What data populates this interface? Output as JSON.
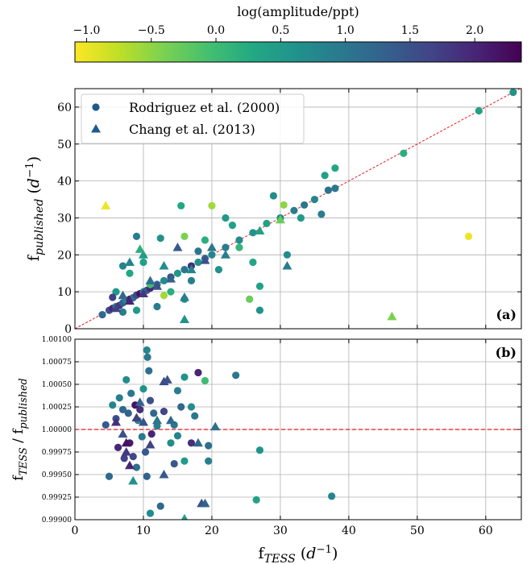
{
  "chart_data": [
    {
      "type": "scatter",
      "colorbar": {
        "label": "log(amplitude/ppt)",
        "colormap": "viridis_r",
        "lim": [
          -1.09,
          2.36
        ],
        "ticks": [
          {
            "value": -1,
            "label": "−1.0"
          },
          {
            "value": -0.5,
            "label": "−0.5"
          },
          {
            "value": 0,
            "label": "0.0"
          },
          0.5,
          {
            "value": 1,
            "label": "1.0"
          },
          1.5,
          {
            "value": 2,
            "label": "2.0"
          }
        ]
      },
      "ylabel": [
        "f",
        "published",
        " (",
        "d",
        "−1",
        ")"
      ],
      "annotation": "(a)",
      "xlim": [
        0,
        65.2
      ],
      "ylim": [
        0,
        65
      ],
      "xticks": [
        0,
        10,
        20,
        30,
        40,
        50,
        60
      ],
      "yticks": [
        0,
        10,
        20,
        30,
        40,
        50,
        60
      ],
      "grid": true,
      "diagonal": true,
      "legend": "upper left",
      "series": [
        {
          "name": "Rodriguez et al. (2000)",
          "marker": "circle",
          "color": "#1f5a8c",
          "x": [
            4,
            5,
            5.5,
            6,
            6.5,
            7,
            7.5,
            8,
            8.5,
            9,
            9.5,
            10,
            10.5,
            11,
            12,
            13,
            14,
            15,
            16,
            17,
            18,
            19,
            20,
            22,
            24,
            26,
            28,
            30,
            32,
            33.5,
            35,
            37,
            38,
            48,
            59,
            64,
            15.5,
            20,
            30.5,
            9,
            12.5,
            16,
            57.5,
            22,
            36,
            31,
            27,
            27,
            25.5,
            24,
            19,
            7,
            6,
            8,
            10,
            11,
            14,
            12,
            9,
            13,
            16,
            17,
            36.5,
            38,
            33,
            29,
            26,
            21,
            23,
            18,
            5.5,
            7
          ],
          "values": [
            3.8,
            5,
            5.5,
            6,
            6.3,
            7,
            7.6,
            8,
            8.4,
            9.1,
            9.5,
            10,
            10.4,
            11,
            12,
            13,
            14,
            15,
            16,
            17,
            18,
            19,
            20,
            22,
            24,
            26,
            28.5,
            30,
            32,
            33.5,
            35,
            37.5,
            38,
            47.5,
            59,
            64,
            33.3,
            33.3,
            33.5,
            25,
            24.5,
            25,
            25,
            30,
            31,
            20,
            11.5,
            5,
            8,
            22,
            24,
            17,
            10,
            15,
            18,
            12,
            10,
            6,
            5,
            9,
            8,
            13,
            41.5,
            43.5,
            30,
            36,
            18,
            16,
            28,
            21,
            8.5,
            4.5
          ],
          "c": [
            1.2,
            1.5,
            2.0,
            1.0,
            1.8,
            1.3,
            0.8,
            2.1,
            1.1,
            1.6,
            2.2,
            0.9,
            1.4,
            2.0,
            1.2,
            0.7,
            1.5,
            0.5,
            1.0,
            1.9,
            0.6,
            1.3,
            0.8,
            0.9,
            0.7,
            0.6,
            0.4,
            0.7,
            0.9,
            1.0,
            0.8,
            1.1,
            1.0,
            0.2,
            0.4,
            0.6,
            0.3,
            -0.6,
            -0.5,
            0.9,
            0.6,
            -0.4,
            -1.0,
            0.5,
            0.9,
            0.7,
            0.4,
            0.6,
            -0.3,
            0.1,
            0.2,
            0.8,
            0.5,
            0.3,
            0.4,
            0.0,
            0.2,
            0.9,
            0.5,
            -0.6,
            0.6,
            0.9,
            0.4,
            0.3,
            0.5,
            0.7,
            0.3,
            0.6,
            0.4,
            1.0,
            1.7,
            0.9
          ]
        },
        {
          "name": "Chang et al. (2013)",
          "marker": "triangle",
          "color": "#1f5a8c",
          "x": [
            4.5,
            46.3,
            16,
            16,
            8,
            10,
            9.5,
            15,
            27,
            31,
            30,
            20,
            6,
            8,
            10,
            12,
            14,
            17,
            19,
            11,
            13,
            7,
            22
          ],
          "values": [
            33.3,
            3.3,
            2.5,
            8.5,
            18,
            20,
            21.5,
            22,
            26.5,
            17,
            29.5,
            22,
            5.5,
            7.5,
            9.5,
            11.5,
            13.5,
            16,
            18.5,
            13,
            17,
            9,
            20
          ],
          "c": [
            -1.0,
            -0.4,
            0.6,
            0.9,
            0.8,
            0.5,
            0.2,
            1.4,
            0.4,
            0.9,
            -0.3,
            1.0,
            1.7,
            2.0,
            1.8,
            1.5,
            1.3,
            0.8,
            1.5,
            1.1,
            0.7,
            1.2,
            0.9
          ]
        }
      ]
    },
    {
      "type": "scatter",
      "ylabel": [
        "f",
        "TESS",
        " / f",
        "published"
      ],
      "xlabel": [
        "f",
        "TESS",
        " (",
        "d",
        "−1",
        ")"
      ],
      "annotation": "(b)",
      "xlim": [
        0,
        65.2
      ],
      "ylim": [
        0.999,
        1.001
      ],
      "xticks": [
        0,
        10,
        20,
        30,
        40,
        50,
        60
      ],
      "yticks": [
        {
          "value": 0.999,
          "label": "0.99900"
        },
        {
          "value": 0.99925,
          "label": "0.99925"
        },
        {
          "value": 0.9995,
          "label": "0.99950"
        },
        {
          "value": 0.99975,
          "label": "0.99975"
        },
        {
          "value": 1,
          "label": "1.00000"
        },
        {
          "value": 1.00025,
          "label": "1.00025"
        },
        {
          "value": 1.0005,
          "label": "1.00050"
        },
        {
          "value": 1.00075,
          "label": "1.00075"
        },
        {
          "value": 1.001,
          "label": "1.00100"
        }
      ],
      "grid": true,
      "hline": 1,
      "series": [
        {
          "name": "Rodriguez et al. (2000)",
          "marker": "circle",
          "x": [
            4.5,
            5,
            5.5,
            6,
            6.3,
            6.5,
            7,
            7.2,
            7.5,
            7.8,
            8,
            8.2,
            8.5,
            8.8,
            9,
            9.2,
            9.5,
            9.8,
            10,
            10.3,
            10.5,
            10.6,
            10.8,
            11,
            11.2,
            11.5,
            12,
            12.5,
            11,
            10.5,
            13,
            14,
            14.5,
            15,
            15.5,
            16,
            16,
            17,
            17.5,
            18,
            19,
            19.5,
            19.5,
            17,
            23.5,
            26.5,
            27,
            37.5,
            14.5,
            15
          ],
          "values": [
            1.00005,
            0.99948,
            1.00027,
            1.00012,
            0.9998,
            1.00035,
            1.00022,
            0.99968,
            1.00055,
            1.00018,
            0.99985,
            1.0004,
            0.9997,
            1.00027,
            0.99958,
            1.0001,
            1.00022,
            0.99992,
            1.00045,
            0.99975,
            1.00088,
            1.0008,
            1.00065,
            1.00032,
            0.99995,
            1.00018,
            1.00004,
            0.99915,
            0.99907,
            0.99948,
            1.0002,
            0.99985,
            1.00005,
            0.99993,
            1.00025,
            1.00058,
            0.99965,
            1.00025,
            1.00015,
            1.00063,
            1.00054,
            0.99965,
            0.99982,
            0.99985,
            1.0006,
            0.99922,
            0.99977,
            0.99926,
            0.99962,
            1.00043
          ],
          "c": [
            1.4,
            1.2,
            0.8,
            1.5,
            2.0,
            0.9,
            1.2,
            1.7,
            0.7,
            1.3,
            2.1,
            1.0,
            1.6,
            2.2,
            1.1,
            0.8,
            1.9,
            1.0,
            0.6,
            1.4,
            0.8,
            1.0,
            1.1,
            1.5,
            2.0,
            1.2,
            0.9,
            1.2,
            0.7,
            1.3,
            1.6,
            0.7,
            1.0,
            0.8,
            1.2,
            0.6,
            0.5,
            0.7,
            1.0,
            2.0,
            0.0,
            0.9,
            1.1,
            1.9,
            1.0,
            0.4,
            0.6,
            0.8,
            1.4,
            0.9
          ]
        },
        {
          "name": "Chang et al. (2013)",
          "marker": "triangle",
          "x": [
            6,
            7,
            7.5,
            8,
            8.5,
            9,
            9.5,
            10,
            11,
            12,
            13,
            13.5,
            13,
            14,
            16,
            18,
            18.5,
            19,
            20.5,
            7.5
          ],
          "values": [
            1.00008,
            0.99995,
            0.99975,
            0.9996,
            0.99943,
            1.00013,
            1.0003,
            1.00008,
            0.99983,
            1.0001,
            1.00053,
            1.00055,
            0.9995,
            1.0001,
            0.99901,
            0.99985,
            0.99918,
            0.99918,
            1.00003,
            0.99985
          ],
          "c": [
            1.9,
            1.5,
            1.8,
            2.0,
            0.6,
            1.7,
            1.3,
            1.5,
            1.7,
            1.0,
            1.6,
            1.5,
            1.4,
            1.2,
            0.4,
            1.2,
            1.5,
            1.3,
            1.1,
            2.2
          ]
        }
      ]
    }
  ]
}
